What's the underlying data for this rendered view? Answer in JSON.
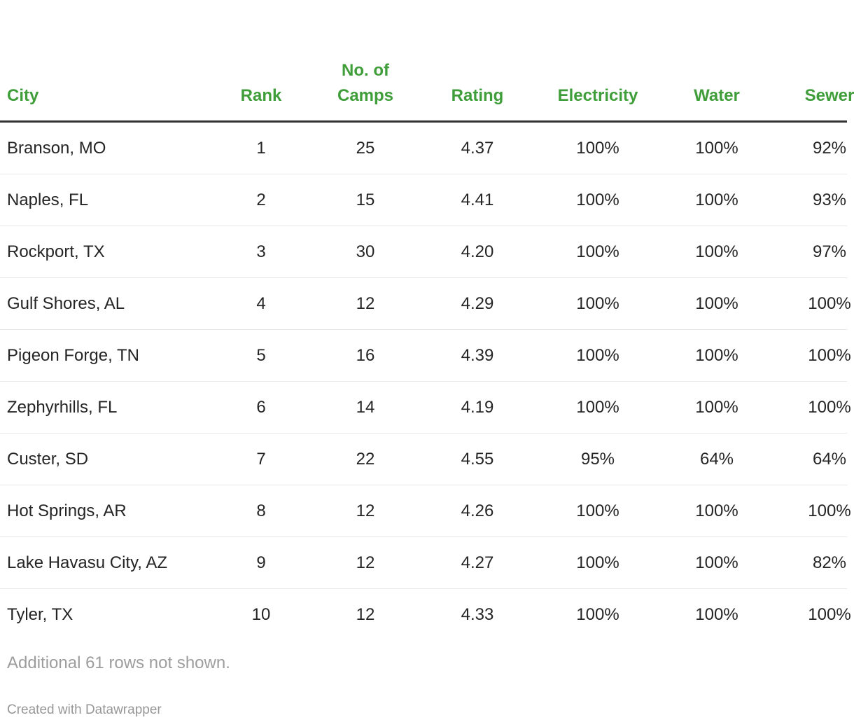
{
  "chart_data": {
    "type": "table",
    "columns": [
      {
        "id": "city",
        "header_lines": [
          "City"
        ],
        "align": "left"
      },
      {
        "id": "rank",
        "header_lines": [
          "Rank"
        ],
        "align": "center"
      },
      {
        "id": "no-of-camps",
        "header_lines": [
          "No. of",
          "Camps"
        ],
        "align": "center"
      },
      {
        "id": "rating",
        "header_lines": [
          "Rating"
        ],
        "align": "center"
      },
      {
        "id": "electricity",
        "header_lines": [
          "Electricity"
        ],
        "align": "center"
      },
      {
        "id": "water",
        "header_lines": [
          "Water"
        ],
        "align": "center"
      },
      {
        "id": "sewer",
        "header_lines": [
          "Sewer"
        ],
        "align": "center"
      }
    ],
    "rows": [
      [
        "Branson, MO",
        "1",
        "25",
        "4.37",
        "100%",
        "100%",
        "92%"
      ],
      [
        "Naples, FL",
        "2",
        "15",
        "4.41",
        "100%",
        "100%",
        "93%"
      ],
      [
        "Rockport, TX",
        "3",
        "30",
        "4.20",
        "100%",
        "100%",
        "97%"
      ],
      [
        "Gulf Shores, AL",
        "4",
        "12",
        "4.29",
        "100%",
        "100%",
        "100%"
      ],
      [
        "Pigeon Forge, TN",
        "5",
        "16",
        "4.39",
        "100%",
        "100%",
        "100%"
      ],
      [
        "Zephyrhills, FL",
        "6",
        "14",
        "4.19",
        "100%",
        "100%",
        "100%"
      ],
      [
        "Custer, SD",
        "7",
        "22",
        "4.55",
        "95%",
        "64%",
        "64%"
      ],
      [
        "Hot Springs, AR",
        "8",
        "12",
        "4.26",
        "100%",
        "100%",
        "100%"
      ],
      [
        "Lake Havasu City, AZ",
        "9",
        "12",
        "4.27",
        "100%",
        "100%",
        "82%"
      ],
      [
        "Tyler, TX",
        "10",
        "12",
        "4.33",
        "100%",
        "100%",
        "100%"
      ]
    ],
    "note": "Additional 61 rows not shown.",
    "attribution": "Created with Datawrapper",
    "layout_hints": {
      "header_alignment": "bottom",
      "grid": "horizontal row separators only",
      "last_column_clipped_at_right_edge": true
    }
  },
  "colors": {
    "header_text": "#3f9e3a",
    "header_border": "#333333",
    "row_separator": "#e8e8e8",
    "body_text": "#252525",
    "muted_text": "#9d9d9d"
  }
}
